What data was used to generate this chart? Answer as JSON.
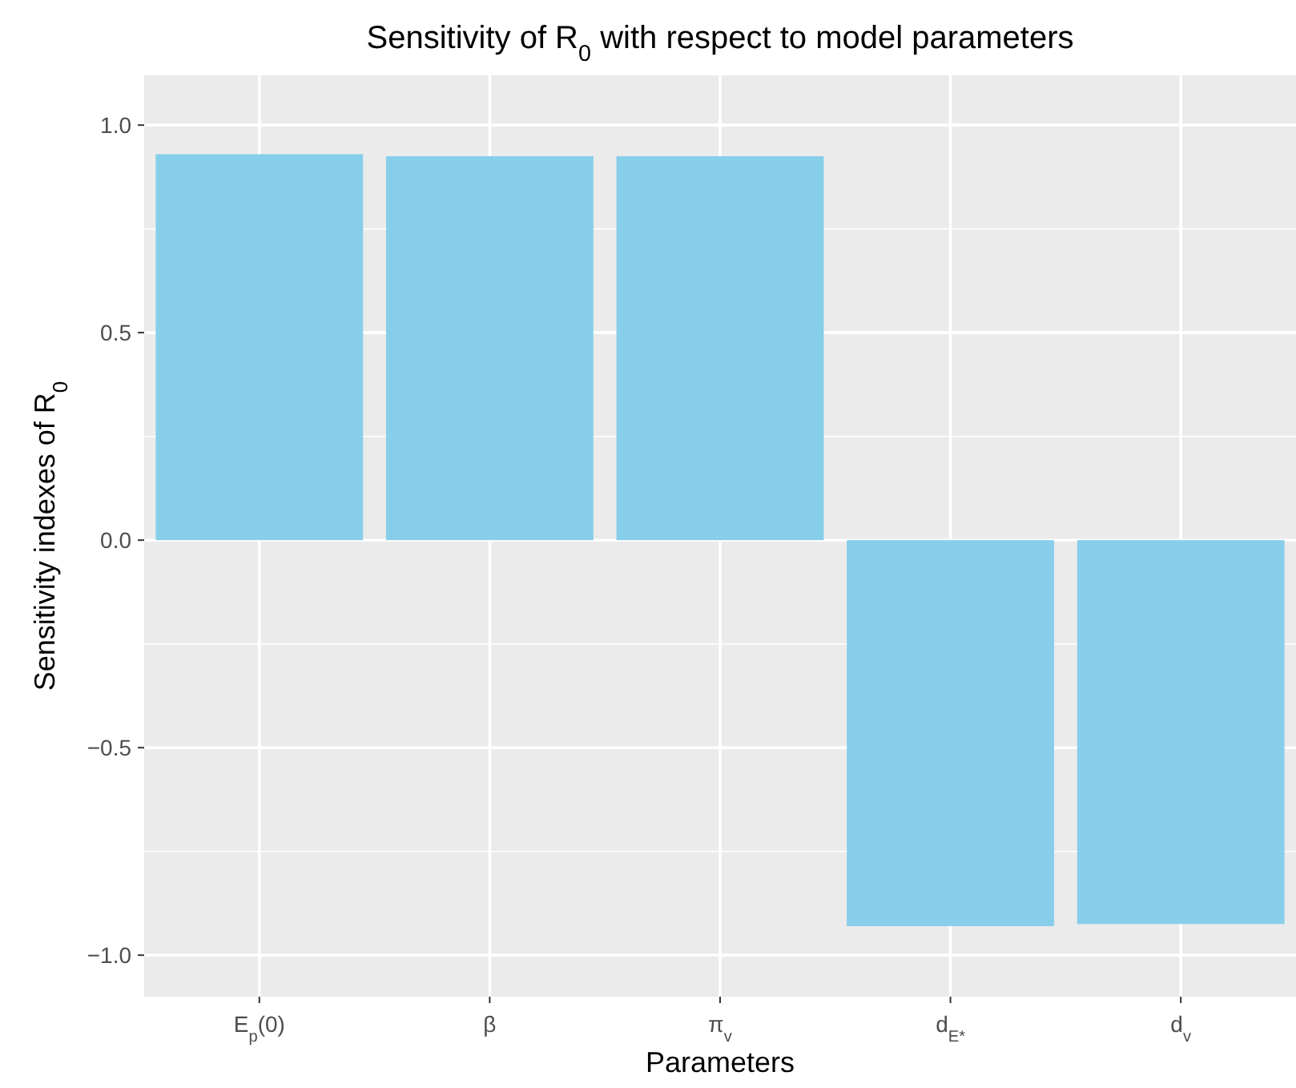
{
  "chart_data": {
    "type": "bar",
    "title": "Sensitivity of R$_{0}$ with respect to model parameters",
    "xlabel": "Parameters",
    "ylabel": "Sensitivity indexes of R$_{0}$",
    "categories": [
      "E$_{p}$(0)",
      "β",
      "π$_{v}$",
      "d$_{E*}$",
      "d$_{v}$"
    ],
    "values": [
      0.93,
      0.925,
      0.925,
      -0.93,
      -0.925
    ],
    "color": "#87ceea",
    "ylim": [
      -1.1,
      1.12
    ],
    "yticks": [
      {
        "value": -1,
        "label": "−1.0"
      },
      {
        "value": -0.5,
        "label": "−0.5"
      },
      {
        "value": 0,
        "label": "0.0"
      },
      {
        "value": 0.5,
        "label": "0.5"
      },
      {
        "value": 1,
        "label": "1.0"
      }
    ],
    "grid": true
  }
}
